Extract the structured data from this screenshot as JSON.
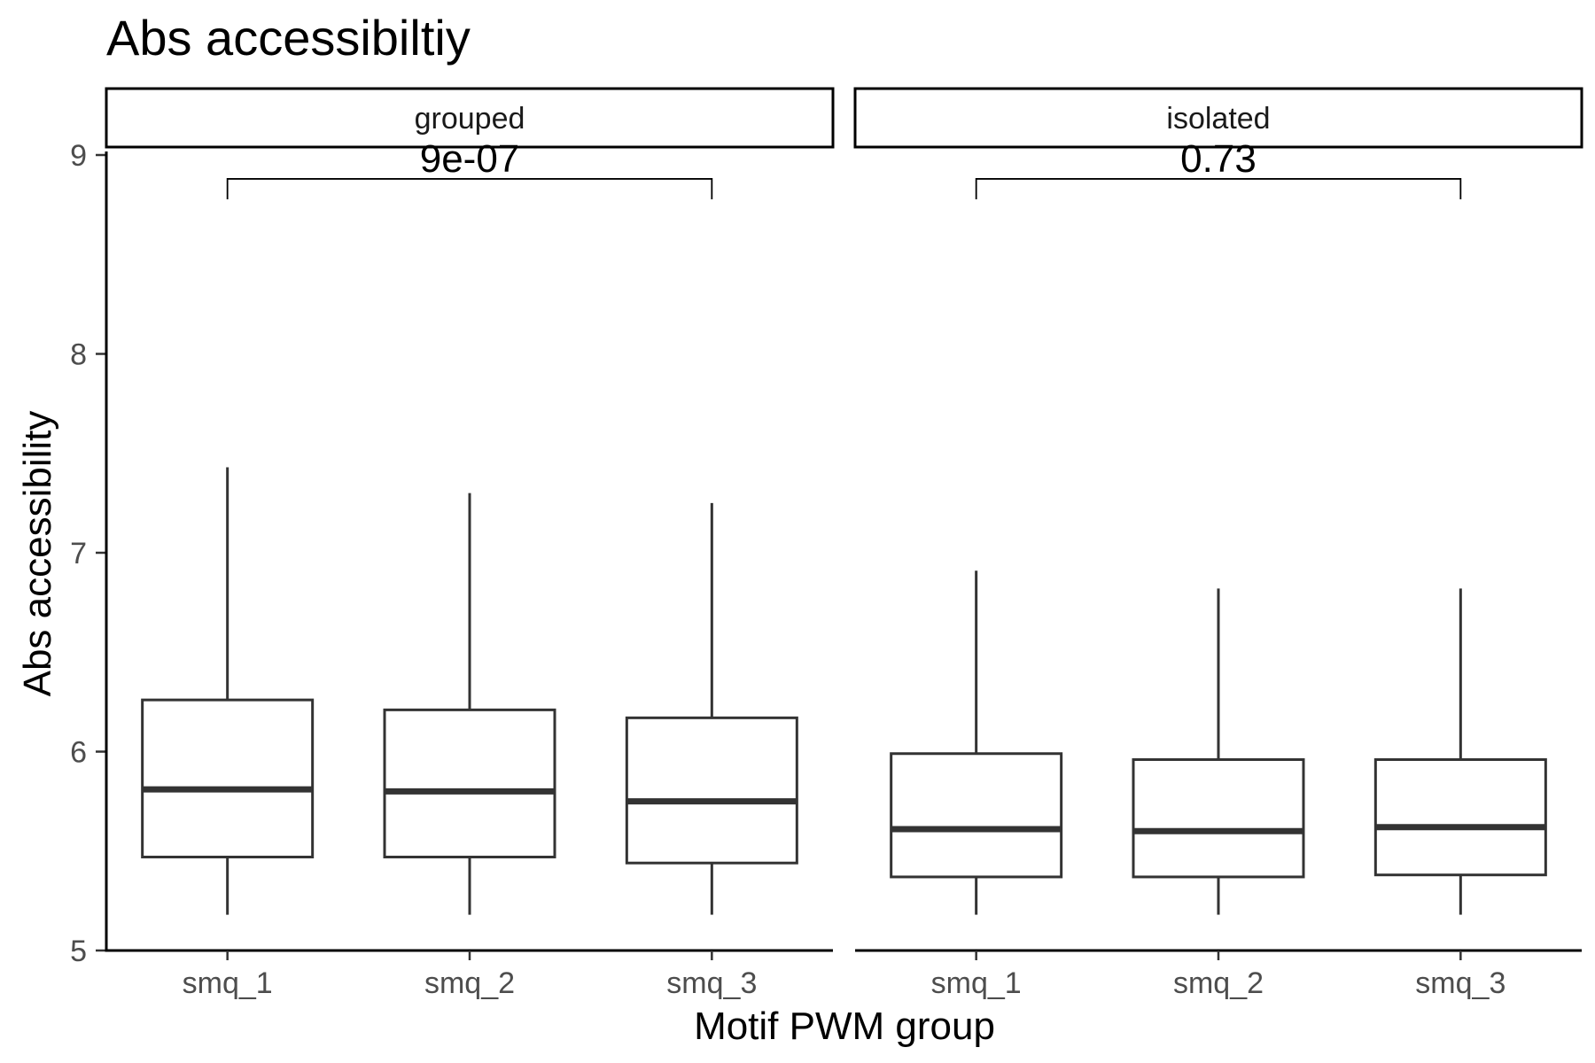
{
  "chart_data": {
    "type": "boxplot",
    "title": "Abs accessibiltiy",
    "xlabel": "Motif PWM group",
    "ylabel": "Abs accessibility",
    "ylim": [
      5,
      9.3
    ],
    "yticks": [
      5,
      6,
      7,
      8,
      9
    ],
    "categories": [
      "smq_1",
      "smq_2",
      "smq_3"
    ],
    "grid": false,
    "facets": [
      {
        "label": "grouped",
        "comparison": {
          "from": "smq_1",
          "to": "smq_3",
          "label": "9e-07",
          "y": 8.88
        },
        "boxes": [
          {
            "category": "smq_1",
            "whisker_low": 5.18,
            "q1": 5.47,
            "median": 5.81,
            "q3": 6.26,
            "whisker_high": 7.43
          },
          {
            "category": "smq_2",
            "whisker_low": 5.18,
            "q1": 5.47,
            "median": 5.8,
            "q3": 6.21,
            "whisker_high": 7.3
          },
          {
            "category": "smq_3",
            "whisker_low": 5.18,
            "q1": 5.44,
            "median": 5.75,
            "q3": 6.17,
            "whisker_high": 7.25
          }
        ]
      },
      {
        "label": "isolated",
        "comparison": {
          "from": "smq_1",
          "to": "smq_3",
          "label": "0.73",
          "y": 8.88
        },
        "boxes": [
          {
            "category": "smq_1",
            "whisker_low": 5.18,
            "q1": 5.37,
            "median": 5.61,
            "q3": 5.99,
            "whisker_high": 6.91
          },
          {
            "category": "smq_2",
            "whisker_low": 5.18,
            "q1": 5.37,
            "median": 5.6,
            "q3": 5.96,
            "whisker_high": 6.82
          },
          {
            "category": "smq_3",
            "whisker_low": 5.18,
            "q1": 5.38,
            "median": 5.62,
            "q3": 5.96,
            "whisker_high": 6.82
          }
        ]
      }
    ]
  }
}
